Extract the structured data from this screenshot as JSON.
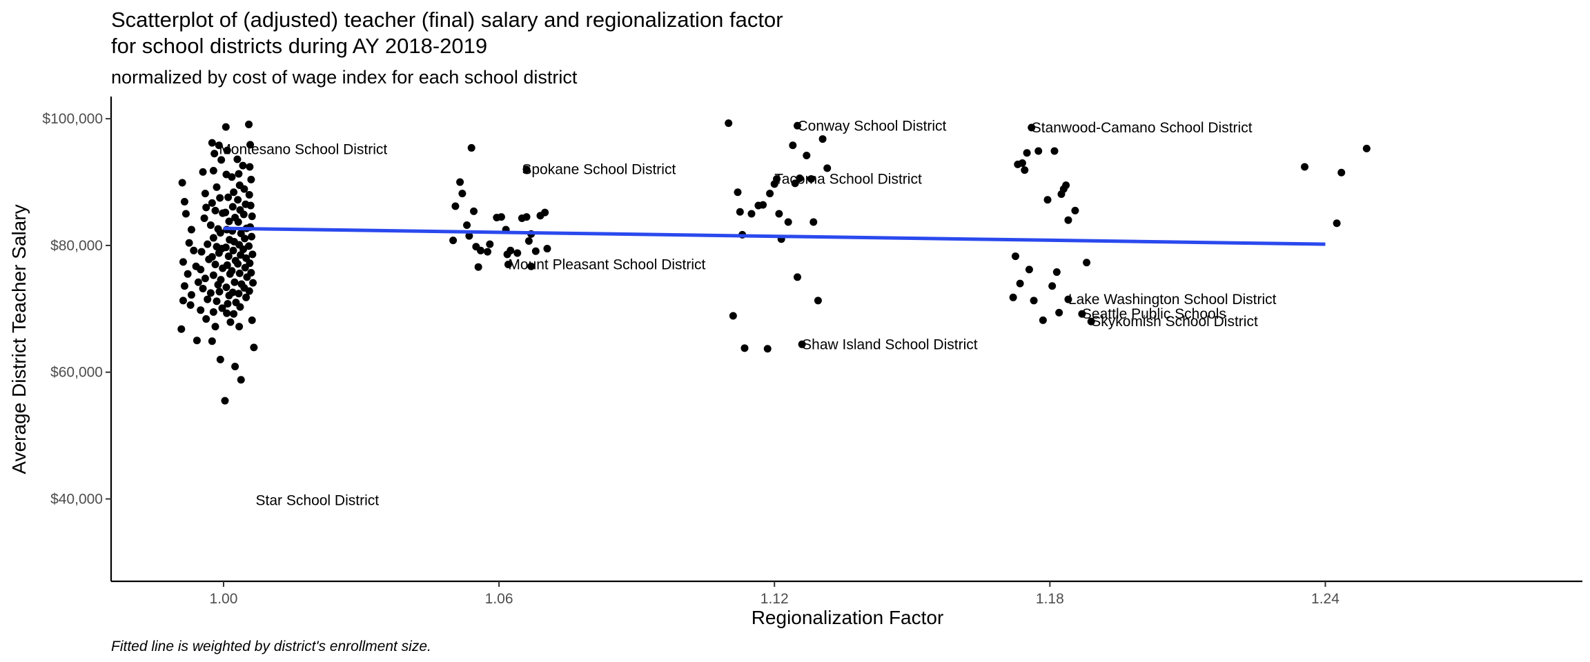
{
  "chart_data": {
    "type": "scatter",
    "title_line1": "Scatterplot of (adjusted) teacher (final) salary and regionalization factor",
    "title_line2": "for school districts during AY 2018-2019",
    "subtitle": "normalized by cost of wage index for each school district",
    "xlabel": "Regionalization Factor",
    "ylabel": "Average District Teacher Salary",
    "caption": "Fitted line is weighted by district's enrollment size.",
    "xlim": [
      0.9755,
      1.296
    ],
    "ylim": [
      27000,
      103500
    ],
    "x_ticks": [
      {
        "value": 1.0,
        "label": "1.00"
      },
      {
        "value": 1.06,
        "label": "1.06"
      },
      {
        "value": 1.12,
        "label": "1.12"
      },
      {
        "value": 1.18,
        "label": "1.18"
      },
      {
        "value": 1.24,
        "label": "1.24"
      }
    ],
    "y_ticks": [
      {
        "value": 40000,
        "label": "$40,000"
      },
      {
        "value": 60000,
        "label": "$60,000"
      },
      {
        "value": 80000,
        "label": "$80,000"
      },
      {
        "value": 100000,
        "label": "$100,000"
      }
    ],
    "grid": false,
    "colors": {
      "points": "#000000",
      "fit_line": "#2a49ee",
      "axis": "#000000"
    },
    "fit_line": {
      "x": [
        1.0,
        1.24
      ],
      "y": [
        82700,
        80200
      ]
    },
    "labels": [
      {
        "text": "Montesano School District",
        "x": 0.999,
        "y": 95200
      },
      {
        "text": "Spokane School District",
        "x": 1.065,
        "y": 92000
      },
      {
        "text": "Mount Pleasant School District",
        "x": 1.062,
        "y": 77000
      },
      {
        "text": "Star School District",
        "x": 1.007,
        "y": 39800
      },
      {
        "text": "Conway School District",
        "x": 1.125,
        "y": 98900
      },
      {
        "text": "Tacoma School District",
        "x": 1.12,
        "y": 90500
      },
      {
        "text": "Shaw Island School District",
        "x": 1.126,
        "y": 64400
      },
      {
        "text": "Stanwood-Camano School District",
        "x": 1.176,
        "y": 98600
      },
      {
        "text": "Lake Washington School District",
        "x": 1.184,
        "y": 71500
      },
      {
        "text": "Seattle Public Schools",
        "x": 1.187,
        "y": 69200
      },
      {
        "text": "Skykomish School District",
        "x": 1.189,
        "y": 68000
      }
    ],
    "points": [
      [
        0.991,
        89900
      ],
      [
        0.9915,
        86900
      ],
      [
        0.9918,
        85000
      ],
      [
        0.993,
        82500
      ],
      [
        0.9925,
        80400
      ],
      [
        0.9935,
        79200
      ],
      [
        0.9912,
        77400
      ],
      [
        0.994,
        76700
      ],
      [
        0.9922,
        75500
      ],
      [
        0.9945,
        74200
      ],
      [
        0.9915,
        73600
      ],
      [
        0.993,
        72200
      ],
      [
        0.9912,
        71300
      ],
      [
        0.9928,
        70600
      ],
      [
        0.9908,
        66800
      ],
      [
        0.9942,
        65000
      ],
      [
        0.9955,
        91600
      ],
      [
        0.996,
        88200
      ],
      [
        0.9962,
        86000
      ],
      [
        0.9958,
        84300
      ],
      [
        0.9965,
        80200
      ],
      [
        0.9952,
        79000
      ],
      [
        0.9968,
        77800
      ],
      [
        0.995,
        76200
      ],
      [
        0.996,
        74800
      ],
      [
        0.9955,
        73200
      ],
      [
        0.9965,
        71500
      ],
      [
        0.995,
        69800
      ],
      [
        0.9962,
        68400
      ],
      [
        0.9975,
        96200
      ],
      [
        0.998,
        94500
      ],
      [
        0.9978,
        91800
      ],
      [
        0.9985,
        89200
      ],
      [
        0.9975,
        86700
      ],
      [
        0.9982,
        85500
      ],
      [
        0.9972,
        83200
      ],
      [
        0.9988,
        82600
      ],
      [
        0.9978,
        81200
      ],
      [
        0.9985,
        79800
      ],
      [
        0.9975,
        78200
      ],
      [
        0.9982,
        77000
      ],
      [
        0.9978,
        75300
      ],
      [
        0.9988,
        73800
      ],
      [
        0.9972,
        72500
      ],
      [
        0.9985,
        71200
      ],
      [
        0.9978,
        69500
      ],
      [
        0.9982,
        67200
      ],
      [
        0.9975,
        64900
      ],
      [
        0.999,
        95800
      ],
      [
        0.9995,
        93500
      ],
      [
        0.9992,
        87500
      ],
      [
        0.9998,
        85100
      ],
      [
        0.9993,
        82000
      ],
      [
        0.9996,
        79500
      ],
      [
        0.999,
        78800
      ],
      [
        0.9998,
        76400
      ],
      [
        0.9994,
        74600
      ],
      [
        0.9991,
        72700
      ],
      [
        0.9997,
        70100
      ],
      [
        0.9993,
        62000
      ],
      [
        1.0003,
        55500
      ],
      [
        1.0005,
        98700
      ],
      [
        1.0008,
        95000
      ],
      [
        1.0006,
        91200
      ],
      [
        1.001,
        87600
      ],
      [
        1.0004,
        85200
      ],
      [
        1.0012,
        83800
      ],
      [
        1.0007,
        82500
      ],
      [
        1.0013,
        80900
      ],
      [
        1.0005,
        79700
      ],
      [
        1.0011,
        78300
      ],
      [
        1.0008,
        76900
      ],
      [
        1.0014,
        75500
      ],
      [
        1.0006,
        73400
      ],
      [
        1.0012,
        72100
      ],
      [
        1.0009,
        70800
      ],
      [
        1.0007,
        69300
      ],
      [
        1.0015,
        67900
      ],
      [
        1.0018,
        90800
      ],
      [
        1.0022,
        88400
      ],
      [
        1.002,
        86100
      ],
      [
        1.0025,
        84400
      ],
      [
        1.0019,
        82300
      ],
      [
        1.0023,
        80600
      ],
      [
        1.0021,
        79200
      ],
      [
        1.0026,
        77600
      ],
      [
        1.0018,
        76000
      ],
      [
        1.0024,
        74200
      ],
      [
        1.002,
        72600
      ],
      [
        1.0027,
        71000
      ],
      [
        1.0022,
        69200
      ],
      [
        1.0025,
        60900
      ],
      [
        1.003,
        93600
      ],
      [
        1.0033,
        91300
      ],
      [
        1.0035,
        89500
      ],
      [
        1.0031,
        87200
      ],
      [
        1.0036,
        85600
      ],
      [
        1.0032,
        83700
      ],
      [
        1.0038,
        81900
      ],
      [
        1.0034,
        80100
      ],
      [
        1.0037,
        78500
      ],
      [
        1.0031,
        77100
      ],
      [
        1.0035,
        75600
      ],
      [
        1.0039,
        73900
      ],
      [
        1.0033,
        72400
      ],
      [
        1.0036,
        70300
      ],
      [
        1.0034,
        67200
      ],
      [
        1.0038,
        58800
      ],
      [
        1.0042,
        92600
      ],
      [
        1.0045,
        88900
      ],
      [
        1.0048,
        86500
      ],
      [
        1.0044,
        84900
      ],
      [
        1.005,
        82700
      ],
      [
        1.0046,
        81100
      ],
      [
        1.0043,
        79400
      ],
      [
        1.0049,
        78000
      ],
      [
        1.0047,
        76500
      ],
      [
        1.0051,
        75000
      ],
      [
        1.0045,
        73300
      ],
      [
        1.0049,
        71800
      ],
      [
        1.0055,
        99100
      ],
      [
        1.0058,
        95900
      ],
      [
        1.0057,
        92400
      ],
      [
        1.006,
        90400
      ],
      [
        1.0056,
        88000
      ],
      [
        1.0059,
        86300
      ],
      [
        1.0062,
        84600
      ],
      [
        1.0058,
        82900
      ],
      [
        1.0061,
        81400
      ],
      [
        1.0055,
        79900
      ],
      [
        1.0063,
        78600
      ],
      [
        1.0057,
        77200
      ],
      [
        1.006,
        75700
      ],
      [
        1.0064,
        74100
      ],
      [
        1.0056,
        72800
      ],
      [
        1.0062,
        68200
      ],
      [
        1.0066,
        63900
      ],
      [
        1.0505,
        86200
      ],
      [
        1.05,
        80800
      ],
      [
        1.0515,
        90000
      ],
      [
        1.052,
        88200
      ],
      [
        1.053,
        83200
      ],
      [
        1.0535,
        81500
      ],
      [
        1.054,
        95400
      ],
      [
        1.0545,
        85400
      ],
      [
        1.055,
        79800
      ],
      [
        1.0555,
        76600
      ],
      [
        1.056,
        79200
      ],
      [
        1.0575,
        79000
      ],
      [
        1.058,
        80200
      ],
      [
        1.0595,
        84400
      ],
      [
        1.0605,
        84500
      ],
      [
        1.0615,
        82500
      ],
      [
        1.0618,
        78600
      ],
      [
        1.0625,
        79200
      ],
      [
        1.064,
        78800
      ],
      [
        1.065,
        84300
      ],
      [
        1.066,
        84500
      ],
      [
        1.0665,
        80700
      ],
      [
        1.067,
        81800
      ],
      [
        1.068,
        79100
      ],
      [
        1.069,
        84700
      ],
      [
        1.07,
        85200
      ],
      [
        1.0705,
        79500
      ],
      [
        1.066,
        92000
      ],
      [
        1.062,
        77000
      ],
      [
        1.067,
        76700
      ],
      [
        1.11,
        99300
      ],
      [
        1.111,
        68900
      ],
      [
        1.112,
        88400
      ],
      [
        1.1125,
        85300
      ],
      [
        1.113,
        81700
      ],
      [
        1.1135,
        63800
      ],
      [
        1.115,
        85000
      ],
      [
        1.1165,
        86300
      ],
      [
        1.1175,
        86400
      ],
      [
        1.1185,
        63700
      ],
      [
        1.119,
        88200
      ],
      [
        1.12,
        89700
      ],
      [
        1.1205,
        90500
      ],
      [
        1.121,
        85000
      ],
      [
        1.1215,
        81000
      ],
      [
        1.123,
        83700
      ],
      [
        1.124,
        95800
      ],
      [
        1.1245,
        89800
      ],
      [
        1.125,
        75000
      ],
      [
        1.1255,
        90600
      ],
      [
        1.127,
        94200
      ],
      [
        1.128,
        90500
      ],
      [
        1.1285,
        83700
      ],
      [
        1.1295,
        71300
      ],
      [
        1.1305,
        96800
      ],
      [
        1.1315,
        92200
      ],
      [
        1.125,
        98900
      ],
      [
        1.126,
        64400
      ],
      [
        1.172,
        71800
      ],
      [
        1.1725,
        78300
      ],
      [
        1.173,
        92800
      ],
      [
        1.1735,
        74000
      ],
      [
        1.174,
        93000
      ],
      [
        1.1745,
        91900
      ],
      [
        1.175,
        94600
      ],
      [
        1.1755,
        76200
      ],
      [
        1.1765,
        71300
      ],
      [
        1.1775,
        94900
      ],
      [
        1.1785,
        68200
      ],
      [
        1.1795,
        87200
      ],
      [
        1.1805,
        73600
      ],
      [
        1.181,
        94900
      ],
      [
        1.1815,
        75800
      ],
      [
        1.182,
        69400
      ],
      [
        1.1825,
        88100
      ],
      [
        1.183,
        88900
      ],
      [
        1.1835,
        89500
      ],
      [
        1.184,
        84000
      ],
      [
        1.1855,
        85500
      ],
      [
        1.188,
        77300
      ],
      [
        1.176,
        98600
      ],
      [
        1.184,
        71500
      ],
      [
        1.187,
        69200
      ],
      [
        1.189,
        68000
      ],
      [
        1.2355,
        92400
      ],
      [
        1.2425,
        83500
      ],
      [
        1.2435,
        91500
      ],
      [
        1.249,
        95300
      ]
    ]
  }
}
